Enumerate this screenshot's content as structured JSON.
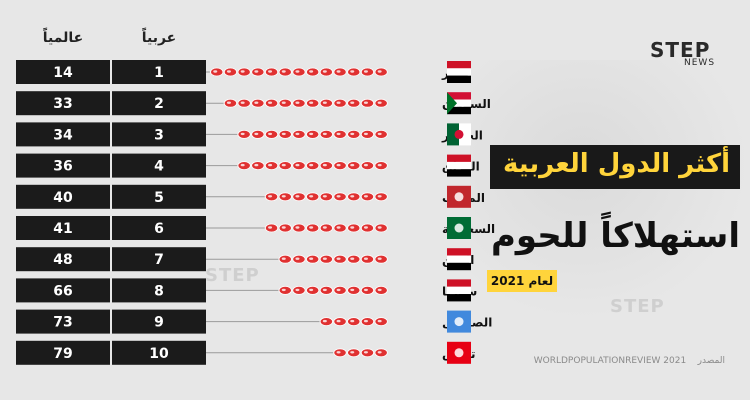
{
  "brand": {
    "name": "STEP",
    "sub": "NEWS"
  },
  "headers": {
    "global": "عالمياً",
    "arab": "عربياً"
  },
  "title": "أكثر الدول العربية",
  "subtitle": "استهلاكاً للحوم",
  "year_label": "لعام 2021",
  "source_label": "المصدر",
  "source": "WORLDPOPULATIONREVIEW 2021",
  "colors": {
    "box": "#1b1b1b",
    "box_text": "#ffffff",
    "title_bg": "#191919",
    "title_text": "#ffd43b",
    "meat": "#e03131"
  },
  "chart_data": {
    "type": "table",
    "title": "أكثر الدول العربية استهلاكاً للحوم",
    "columns": [
      "عالمياً",
      "عربياً"
    ],
    "rows": [
      {
        "country": "مصر",
        "arab_rank": 1,
        "global_rank": 14,
        "icons": 13
      },
      {
        "country": "السودان",
        "arab_rank": 2,
        "global_rank": 33,
        "icons": 12
      },
      {
        "country": "الجزائر",
        "arab_rank": 3,
        "global_rank": 34,
        "icons": 11
      },
      {
        "country": "العراق",
        "arab_rank": 4,
        "global_rank": 36,
        "icons": 11
      },
      {
        "country": "المغرب",
        "arab_rank": 5,
        "global_rank": 40,
        "icons": 9
      },
      {
        "country": "السعودية",
        "arab_rank": 6,
        "global_rank": 41,
        "icons": 9
      },
      {
        "country": "اليمن",
        "arab_rank": 7,
        "global_rank": 48,
        "icons": 8
      },
      {
        "country": "سوريا",
        "arab_rank": 8,
        "global_rank": 66,
        "icons": 8
      },
      {
        "country": "الصومال",
        "arab_rank": 9,
        "global_rank": 73,
        "icons": 5
      },
      {
        "country": "تونس",
        "arab_rank": 10,
        "global_rank": 79,
        "icons": 4
      }
    ],
    "flags": [
      {
        "name": "egypt-flag",
        "stripes": [
          "#ce1126",
          "#ffffff",
          "#000000"
        ]
      },
      {
        "name": "sudan-flag",
        "stripes": [
          "#d21034",
          "#ffffff",
          "#000000"
        ],
        "tri": "#007229"
      },
      {
        "name": "algeria-flag",
        "halves": [
          "#006233",
          "#ffffff"
        ]
      },
      {
        "name": "iraq-flag",
        "stripes": [
          "#ce1126",
          "#ffffff",
          "#000000"
        ]
      },
      {
        "name": "morocco-flag",
        "solid": "#c1272d"
      },
      {
        "name": "saudi-flag",
        "solid": "#006c35"
      },
      {
        "name": "yemen-flag",
        "stripes": [
          "#ce1126",
          "#ffffff",
          "#000000"
        ]
      },
      {
        "name": "syria-flag",
        "stripes": [
          "#ce1126",
          "#ffffff",
          "#000000"
        ]
      },
      {
        "name": "somalia-flag",
        "solid": "#4189dd"
      },
      {
        "name": "tunisia-flag",
        "solid": "#e70013"
      }
    ]
  }
}
